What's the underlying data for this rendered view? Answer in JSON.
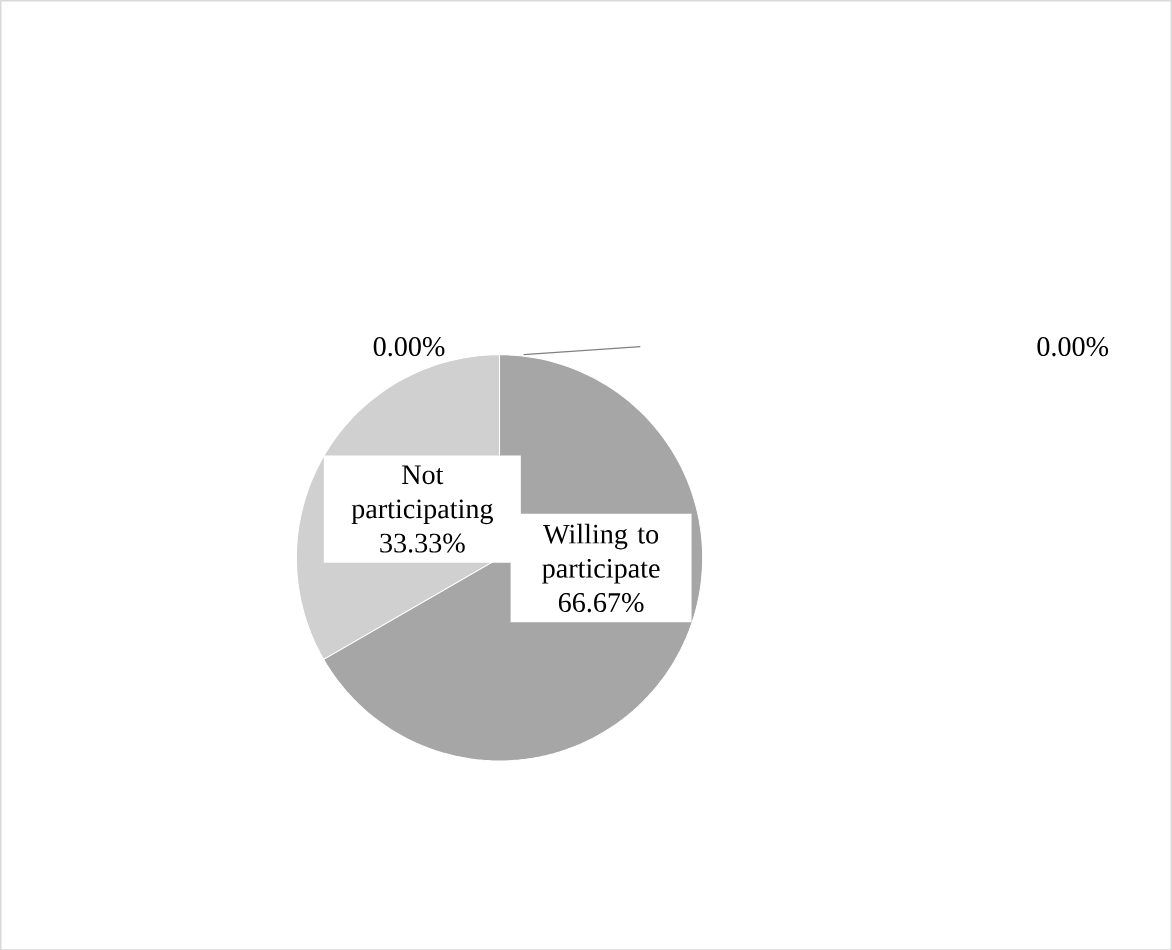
{
  "chart_data": {
    "type": "pie",
    "categories": [
      "Willing to participate",
      "Not participating",
      null,
      null
    ],
    "values": [
      66.67,
      33.33,
      0,
      0
    ],
    "value_labels": [
      "66.67%",
      "33.33%",
      "0.00%",
      "0.00%"
    ],
    "colors": [
      "#a6a6a6",
      "#d0d0d0",
      "#808080",
      "#808080"
    ]
  }
}
